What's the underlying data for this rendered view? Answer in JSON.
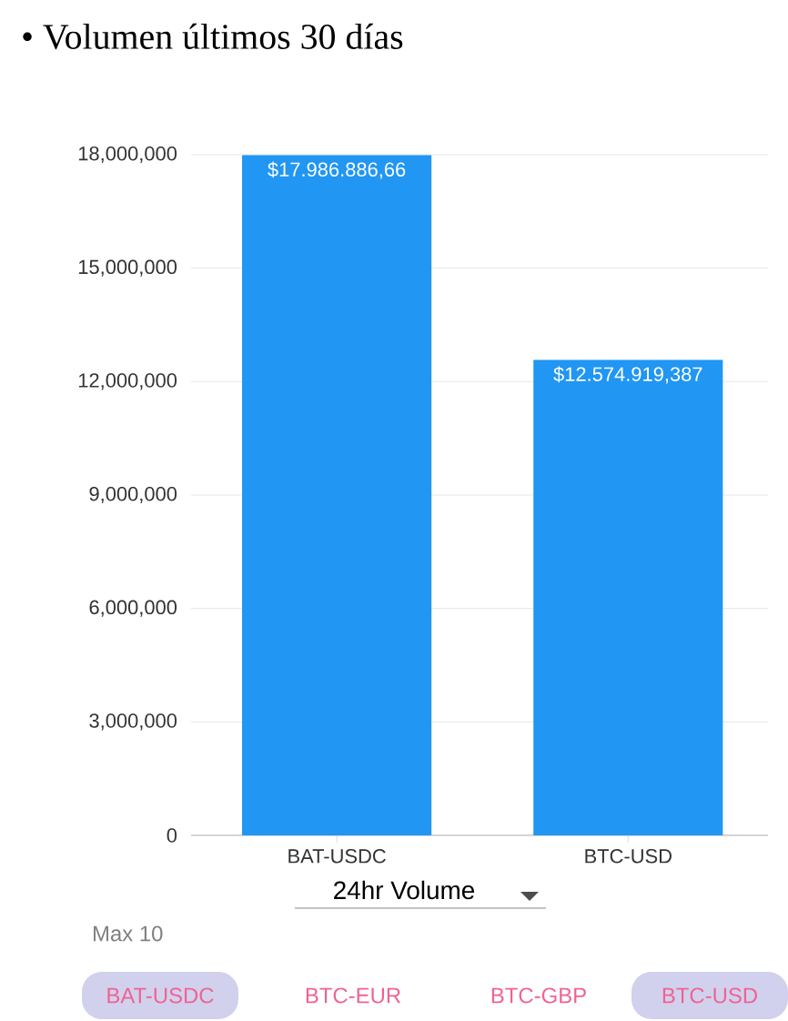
{
  "chart_data": {
    "type": "bar",
    "title": "•  Volumen últimos 30 días",
    "categories": [
      "BAT-USDC",
      "BTC-USD"
    ],
    "values": [
      17986886.66,
      12574919.387
    ],
    "value_labels": [
      "$17.986.886,66",
      "$12.574.919,387"
    ],
    "color": "#2196f3",
    "xlabel": "24hr Volume",
    "ylim": [
      0,
      18000000
    ],
    "yticks": [
      {
        "value": 0,
        "label": "0"
      },
      {
        "value": 3000000,
        "label": "3,000,000"
      },
      {
        "value": 6000000,
        "label": "6,000,000"
      },
      {
        "value": 9000000,
        "label": "9,000,000"
      },
      {
        "value": 12000000,
        "label": "12,000,000"
      },
      {
        "value": 15000000,
        "label": "15,000,000"
      },
      {
        "value": 18000000,
        "label": "18,000,000"
      }
    ],
    "grid": "y",
    "annotations": [
      "Max 10",
      "BAT-USDC",
      "BTC-EUR",
      "BTC-GBP",
      "BTC-USD"
    ]
  }
}
